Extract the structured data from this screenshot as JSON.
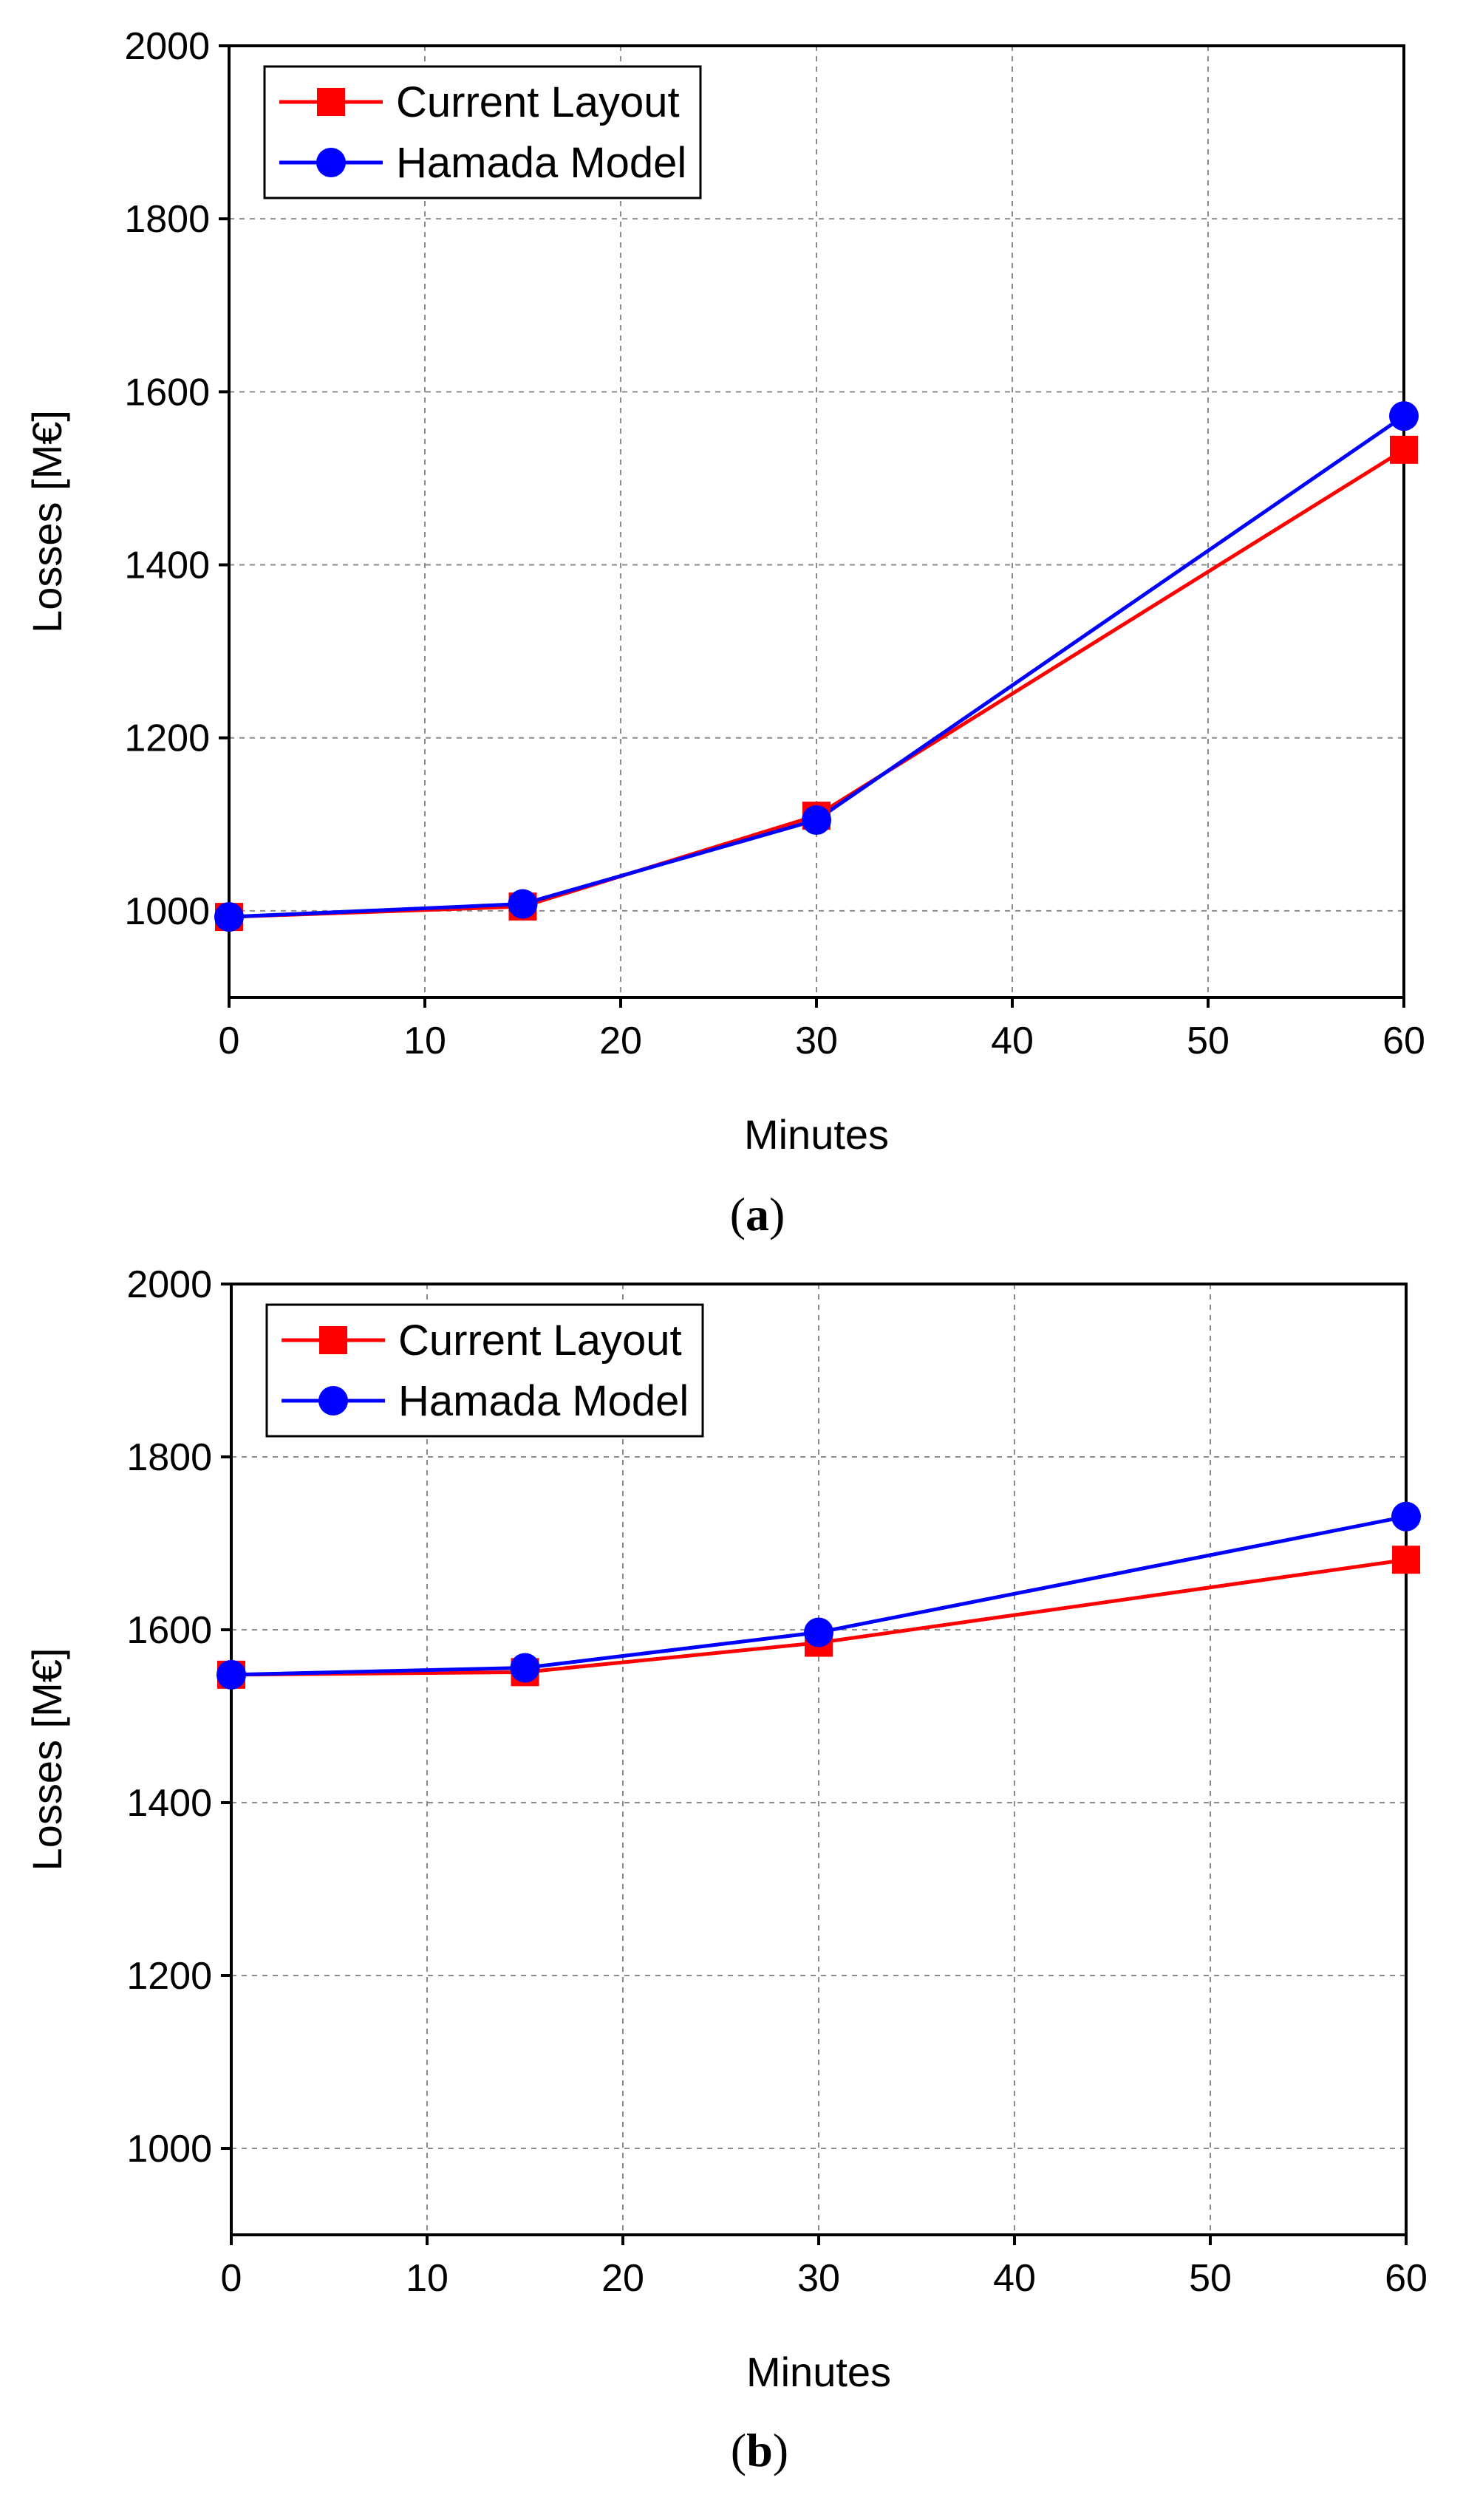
{
  "figure": {
    "panels": [
      "a",
      "b"
    ]
  },
  "chart_data": [
    {
      "type": "line",
      "panel_label": "(a)",
      "panel_letter": "a",
      "title": "",
      "xlabel": "Minutes",
      "ylabel": "Losses [M€]",
      "xlim": [
        0,
        60
      ],
      "ylim": [
        900,
        2000
      ],
      "xticks": [
        0,
        10,
        20,
        30,
        40,
        50,
        60
      ],
      "yticks": [
        1000,
        1200,
        1400,
        1600,
        1800,
        2000
      ],
      "grid": true,
      "legend_position": "top-left",
      "x": [
        0,
        15,
        30,
        60
      ],
      "series": [
        {
          "name": "Current Layout",
          "color": "#ff0000",
          "marker": "square",
          "values": [
            993,
            1005,
            1110,
            1533
          ]
        },
        {
          "name": "Hamada Model",
          "color": "#0000ff",
          "marker": "circle",
          "values": [
            993,
            1008,
            1105,
            1572
          ]
        }
      ]
    },
    {
      "type": "line",
      "panel_label": "(b)",
      "panel_letter": "b",
      "title": "",
      "xlabel": "Minutes",
      "ylabel": "Losses [M€]",
      "xlim": [
        0,
        60
      ],
      "ylim": [
        900,
        2000
      ],
      "xticks": [
        0,
        10,
        20,
        30,
        40,
        50,
        60
      ],
      "yticks": [
        1000,
        1200,
        1400,
        1600,
        1800,
        2000
      ],
      "grid": true,
      "legend_position": "top-left",
      "x": [
        0,
        15,
        30,
        60
      ],
      "series": [
        {
          "name": "Current Layout",
          "color": "#ff0000",
          "marker": "square",
          "values": [
            1548,
            1551,
            1585,
            1681
          ]
        },
        {
          "name": "Hamada Model",
          "color": "#0000ff",
          "marker": "circle",
          "values": [
            1548,
            1556,
            1597,
            1731
          ]
        }
      ]
    }
  ]
}
